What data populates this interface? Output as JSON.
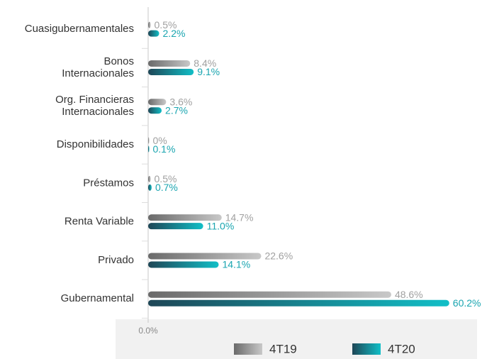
{
  "chart_data": {
    "type": "bar",
    "orientation": "horizontal",
    "categories": [
      [
        "Cuasigubernamentales"
      ],
      [
        "Bonos",
        "Internacionales"
      ],
      [
        "Org. Financieras",
        "Internacionales"
      ],
      [
        "Disponibilidades"
      ],
      [
        "Préstamos"
      ],
      [
        "Renta Variable"
      ],
      [
        "Privado"
      ],
      [
        "Gubernamental"
      ]
    ],
    "series": [
      {
        "name": "4T19",
        "color": "#c8c8c8",
        "values": [
          0.5,
          8.4,
          3.6,
          0,
          0.5,
          14.7,
          22.6,
          48.6
        ],
        "value_labels": [
          "0.5%",
          "8.4%",
          "3.6%",
          "0%",
          "0.5%",
          "14.7%",
          "22.6%",
          "48.6%"
        ]
      },
      {
        "name": "4T20",
        "color": "#11bfc7",
        "values": [
          2.2,
          9.1,
          2.7,
          0.1,
          0.7,
          11.0,
          14.1,
          60.2
        ],
        "value_labels": [
          "2.2%",
          "9.1%",
          "2.7%",
          "0.1%",
          "0.7%",
          "11.0%",
          "14.1%",
          "60.2%"
        ]
      }
    ],
    "xlim": [
      0,
      71
    ],
    "xticks": [
      {
        "value": 0,
        "label": "0.0%"
      }
    ],
    "legend": "bottom"
  }
}
